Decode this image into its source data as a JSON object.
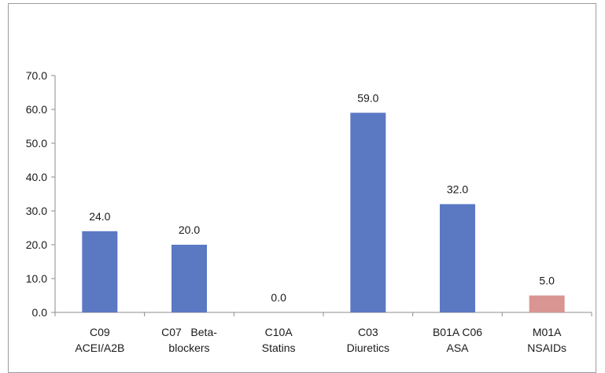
{
  "chart_data": {
    "type": "bar",
    "title": "",
    "xlabel": "",
    "ylabel": "",
    "ylim": [
      0,
      70
    ],
    "y_ticks": [
      "0.0",
      "10.0",
      "20.0",
      "30.0",
      "40.0",
      "50.0",
      "60.0",
      "70.0"
    ],
    "grid": false,
    "categories": [
      [
        "C09",
        "ACEI/A2B"
      ],
      [
        "C07   Beta-",
        "blockers"
      ],
      [
        "C10A",
        "Statins"
      ],
      [
        "C03",
        "Diuretics"
      ],
      [
        "B01A C06",
        "ASA"
      ],
      [
        "M01A",
        "NSAIDs"
      ]
    ],
    "values": [
      24.0,
      20.0,
      0.0,
      59.0,
      32.0,
      5.0
    ],
    "data_labels": [
      "24.0",
      "20.0",
      "0.0",
      "59.0",
      "32.0",
      "5.0"
    ],
    "colors": [
      "#5b78c3",
      "#5b78c3",
      "#5b78c3",
      "#5b78c3",
      "#5b78c3",
      "#d99591"
    ]
  }
}
